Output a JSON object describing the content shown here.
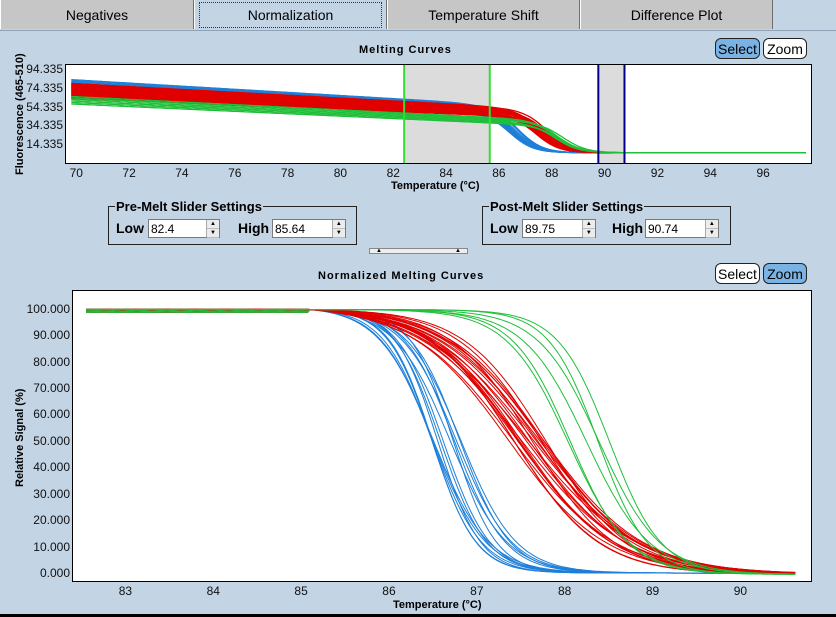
{
  "tabs": [
    {
      "label": "Negatives",
      "active": false
    },
    {
      "label": "Normalization",
      "active": true
    },
    {
      "label": "Temperature Shift",
      "active": false
    },
    {
      "label": "Difference Plot",
      "active": false
    }
  ],
  "top_panel": {
    "title": "Melting Curves",
    "select_label": "Select",
    "zoom_label": "Zoom",
    "mode": "select"
  },
  "pre_melt": {
    "title": "Pre-Melt Slider Settings",
    "low_label": "Low",
    "low_value": "82.4",
    "high_label": "High",
    "high_value": "85.64"
  },
  "post_melt": {
    "title": "Post-Melt Slider Settings",
    "low_label": "Low",
    "low_value": "89.75",
    "high_label": "High",
    "high_value": "90.74"
  },
  "bottom_panel": {
    "title": "Normalized Melting Curves",
    "select_label": "Select",
    "zoom_label": "Zoom",
    "mode": "zoom"
  },
  "colors": {
    "series_blue": "#1e7fd8",
    "series_red": "#e00000",
    "series_green": "#1fbf3a",
    "pre_melt_line": "#33dd33",
    "post_melt_line": "#00008b",
    "slider_region": "#dcdcdc",
    "button_on": "#7ab3e3"
  },
  "chart_data": [
    {
      "type": "line",
      "title": "Melting Curves",
      "xlabel": "Temperature (°C)",
      "ylabel": "Fluorescence (465-510)",
      "xlim": [
        69.6,
        97.8
      ],
      "ylim": [
        -5,
        100
      ],
      "xticks": [
        "70",
        "72",
        "74",
        "76",
        "78",
        "80",
        "82",
        "84",
        "86",
        "88",
        "90",
        "92",
        "94",
        "96"
      ],
      "yticks": [
        "94.335",
        "74.335",
        "54.335",
        "34.335",
        "14.335"
      ],
      "ytick_values": [
        94.335,
        74.335,
        54.335,
        34.335,
        14.335
      ],
      "regions": [
        {
          "name": "pre-melt",
          "low": 82.4,
          "high": 85.64
        },
        {
          "name": "post-melt",
          "low": 89.75,
          "high": 90.74
        }
      ],
      "series": [
        {
          "name": "blue group",
          "color": "#1e7fd8",
          "count": 14,
          "start_level_range": [
            68,
            84
          ],
          "pre_melt_level_range": [
            48,
            58
          ],
          "tm": 86.6,
          "end_level": 6
        },
        {
          "name": "red group",
          "color": "#e00000",
          "count": 22,
          "start_level_range": [
            64,
            80
          ],
          "pre_melt_level_range": [
            46,
            56
          ],
          "tm": 87.6,
          "end_level": 6
        },
        {
          "name": "green group",
          "color": "#1fbf3a",
          "count": 6,
          "start_level_range": [
            58,
            66
          ],
          "pre_melt_level_range": [
            38,
            44
          ],
          "tm": 88.3,
          "end_level": 6
        }
      ]
    },
    {
      "type": "line",
      "title": "Normalized Melting Curves",
      "xlabel": "Temperature (°C)",
      "ylabel": "Relative Signal (%)",
      "xlim": [
        82.4,
        90.8
      ],
      "ylim": [
        -2.5,
        107
      ],
      "xticks": [
        "83",
        "84",
        "85",
        "86",
        "87",
        "88",
        "89",
        "90"
      ],
      "yticks": [
        "100.000",
        "90.000",
        "80.000",
        "70.000",
        "60.000",
        "50.000",
        "40.000",
        "30.000",
        "20.000",
        "10.000",
        "0.000"
      ],
      "ytick_values": [
        100,
        90,
        80,
        70,
        60,
        50,
        40,
        30,
        20,
        10,
        0
      ],
      "series": [
        {
          "name": "blue group",
          "color": "#1e7fd8",
          "count": 14,
          "tm_range": [
            86.45,
            86.85
          ],
          "width": 0.28,
          "plateau_end": 0.5
        },
        {
          "name": "red group",
          "color": "#e00000",
          "count": 22,
          "tm_range": [
            87.3,
            87.8
          ],
          "width": 0.55,
          "plateau_end": 0
        },
        {
          "name": "green group",
          "color": "#1fbf3a",
          "count": 6,
          "tm_range": [
            87.95,
            88.55
          ],
          "width": 0.33,
          "plateau_end": 0
        }
      ]
    }
  ]
}
